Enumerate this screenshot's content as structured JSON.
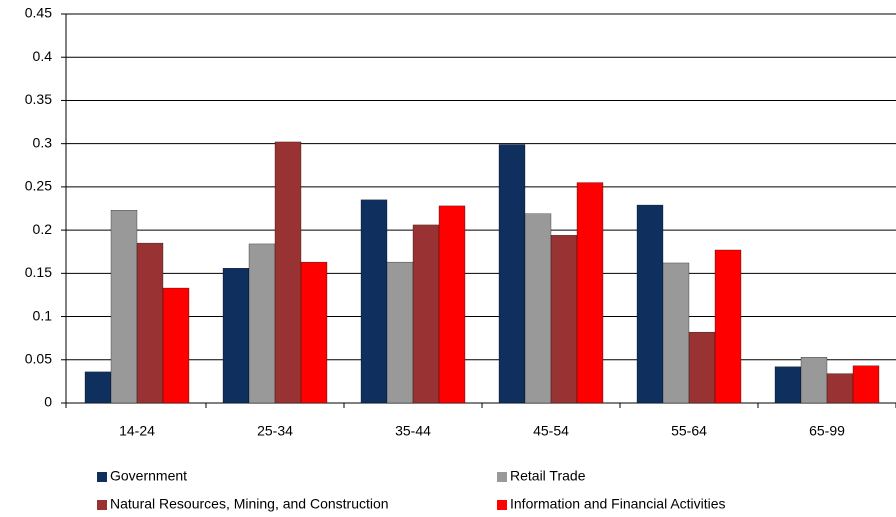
{
  "chart_data": {
    "type": "bar",
    "categories": [
      "14-24",
      "25-34",
      "35-44",
      "45-54",
      "55-64",
      "65-99"
    ],
    "series": [
      {
        "name": "Government",
        "color": "#0f2f5f",
        "values": [
          0.036,
          0.156,
          0.235,
          0.299,
          0.229,
          0.042
        ]
      },
      {
        "name": "Retail Trade",
        "color": "#999999",
        "values": [
          0.223,
          0.184,
          0.163,
          0.219,
          0.162,
          0.053
        ]
      },
      {
        "name": "Natural Resources, Mining, and Construction",
        "color": "#993333",
        "values": [
          0.185,
          0.302,
          0.206,
          0.194,
          0.082,
          0.034
        ]
      },
      {
        "name": "Information and Financial Activities",
        "color": "#ff0000",
        "values": [
          0.133,
          0.163,
          0.228,
          0.255,
          0.177,
          0.043
        ]
      }
    ],
    "ylim": [
      0,
      0.45
    ],
    "yticks": [
      0,
      0.05,
      0.1,
      0.15,
      0.2,
      0.25,
      0.3,
      0.35,
      0.4,
      0.45
    ],
    "grid": true,
    "legend": "bottom"
  }
}
